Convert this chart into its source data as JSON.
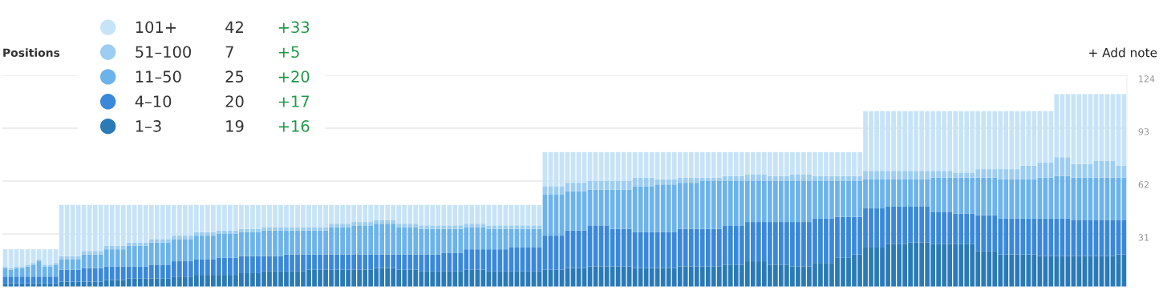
{
  "chart_data": {
    "type": "bar",
    "title": "Positions",
    "stacked": true,
    "categories": [
      null,
      null,
      null,
      null,
      null,
      null,
      null,
      null,
      null,
      null,
      null,
      null,
      null,
      null,
      null,
      null,
      null,
      null,
      null,
      null,
      null,
      null,
      null,
      null,
      null,
      null,
      null,
      null,
      null,
      null,
      null,
      null,
      null,
      null,
      null,
      null,
      null,
      null,
      null,
      null,
      null,
      null,
      null,
      null,
      null,
      null,
      null,
      null,
      null,
      null,
      null,
      null,
      null,
      null,
      null,
      null,
      null,
      null,
      null,
      null,
      null,
      null,
      null,
      null,
      null,
      null,
      null,
      null,
      null,
      null,
      null,
      null,
      null,
      null,
      null,
      null,
      null,
      null,
      null,
      null,
      null,
      null,
      null,
      null,
      null,
      null,
      null,
      null,
      null,
      null,
      null,
      null,
      null,
      null,
      null,
      null,
      null,
      null,
      null,
      null,
      null,
      null,
      null,
      null,
      null,
      null,
      null,
      null,
      null,
      null,
      null,
      null,
      null,
      null,
      null,
      null,
      null,
      null,
      null,
      null,
      null,
      null,
      null,
      null,
      null,
      null,
      null,
      null,
      null,
      null,
      null,
      null,
      null,
      null,
      null,
      null,
      null,
      null,
      null,
      null,
      null,
      null,
      null,
      null,
      null,
      null,
      null,
      null,
      null,
      null,
      null,
      null,
      null,
      null,
      null,
      null,
      null,
      null,
      null,
      null,
      null,
      null,
      null,
      null,
      null,
      null,
      null,
      null,
      null,
      null,
      null,
      null,
      null,
      null,
      null,
      null,
      null,
      null,
      null,
      null,
      null,
      null,
      null,
      null,
      null,
      null,
      null,
      null,
      null,
      null,
      null,
      null,
      null,
      null,
      null,
      null,
      null,
      null,
      null,
      null
    ],
    "series": [
      {
        "name": "1–3",
        "color": "#2a7ab8",
        "values": [
          2,
          2,
          2,
          2,
          2,
          2,
          2,
          2,
          2,
          2,
          3,
          3,
          3,
          3,
          3,
          3,
          3,
          3,
          4,
          4,
          4,
          4,
          5,
          5,
          5,
          5,
          5,
          5,
          5,
          5,
          6,
          6,
          6,
          6,
          7,
          7,
          7,
          7,
          7,
          7,
          7,
          7,
          8,
          8,
          8,
          8,
          9,
          9,
          9,
          9,
          9,
          9,
          9,
          9,
          10,
          10,
          10,
          10,
          10,
          10,
          10,
          10,
          10,
          10,
          10,
          10,
          11,
          11,
          11,
          11,
          10,
          10,
          10,
          10,
          9,
          9,
          9,
          9,
          9,
          9,
          9,
          9,
          10,
          10,
          10,
          10,
          9,
          9,
          9,
          9,
          9,
          9,
          9,
          9,
          9,
          9,
          10,
          10,
          10,
          10,
          11,
          11,
          11,
          11,
          12,
          12,
          12,
          12,
          12,
          12,
          12,
          12,
          11,
          11,
          11,
          11,
          11,
          11,
          11,
          11,
          12,
          12,
          12,
          12,
          12,
          12,
          12,
          12,
          13,
          13,
          13,
          13,
          15,
          15,
          15,
          15,
          13,
          13,
          13,
          13,
          12,
          12,
          12,
          12,
          14,
          14,
          14,
          14,
          17,
          17,
          17,
          19,
          19,
          23,
          23,
          23,
          23,
          25,
          25,
          25,
          25,
          26,
          26,
          26,
          26,
          25,
          25,
          25,
          25,
          25,
          25,
          25,
          25,
          21,
          21,
          21,
          21,
          19,
          19,
          19,
          19,
          19,
          19,
          19,
          18,
          18,
          18,
          18,
          18,
          18,
          18,
          18,
          18,
          18,
          18,
          18,
          18,
          18,
          19,
          19
        ]
      },
      {
        "name": "4–10",
        "color": "#3a88da",
        "values": [
          4,
          4,
          4,
          4,
          4,
          4,
          4,
          4,
          4,
          4,
          7,
          7,
          7,
          7,
          8,
          8,
          8,
          8,
          8,
          8,
          8,
          8,
          7,
          7,
          7,
          7,
          8,
          8,
          8,
          8,
          9,
          9,
          9,
          9,
          9,
          9,
          9,
          9,
          10,
          10,
          10,
          10,
          10,
          10,
          10,
          10,
          9,
          9,
          9,
          9,
          10,
          10,
          10,
          10,
          9,
          9,
          9,
          9,
          9,
          9,
          9,
          9,
          9,
          9,
          9,
          9,
          8,
          8,
          8,
          8,
          9,
          9,
          9,
          9,
          10,
          10,
          10,
          10,
          11,
          11,
          11,
          11,
          12,
          12,
          12,
          12,
          13,
          13,
          13,
          13,
          14,
          14,
          14,
          14,
          14,
          14,
          20,
          20,
          20,
          20,
          22,
          22,
          22,
          22,
          24,
          24,
          24,
          24,
          22,
          22,
          22,
          22,
          21,
          21,
          21,
          21,
          21,
          21,
          21,
          21,
          22,
          22,
          22,
          22,
          22,
          22,
          22,
          22,
          23,
          23,
          23,
          23,
          23,
          23,
          23,
          23,
          25,
          25,
          25,
          25,
          26,
          26,
          26,
          26,
          26,
          26,
          26,
          26,
          24,
          24,
          24,
          22,
          22,
          23,
          23,
          23,
          23,
          22,
          22,
          22,
          22,
          21,
          21,
          21,
          21,
          19,
          19,
          19,
          19,
          18,
          18,
          18,
          18,
          21,
          21,
          21,
          21,
          21,
          21,
          21,
          21,
          21,
          21,
          21,
          22,
          22,
          22,
          22,
          22,
          22,
          21,
          21,
          21,
          21,
          21,
          21,
          21,
          21,
          20,
          20
        ]
      },
      {
        "name": "11–50",
        "color": "#6cb3ec",
        "values": [
          5,
          4,
          5,
          5,
          6,
          7,
          9,
          6,
          6,
          7,
          6,
          6,
          6,
          6,
          8,
          8,
          8,
          8,
          10,
          10,
          10,
          10,
          12,
          12,
          12,
          12,
          13,
          13,
          13,
          13,
          13,
          13,
          13,
          13,
          14,
          14,
          14,
          14,
          14,
          14,
          14,
          14,
          14,
          14,
          14,
          14,
          15,
          15,
          15,
          15,
          14,
          14,
          14,
          14,
          14,
          14,
          14,
          14,
          16,
          16,
          16,
          16,
          17,
          17,
          17,
          17,
          18,
          18,
          18,
          18,
          16,
          16,
          16,
          16,
          15,
          15,
          15,
          15,
          14,
          14,
          14,
          14,
          13,
          13,
          13,
          13,
          12,
          12,
          12,
          12,
          11,
          11,
          11,
          11,
          11,
          11,
          24,
          24,
          24,
          24,
          23,
          23,
          23,
          23,
          21,
          21,
          21,
          21,
          23,
          23,
          23,
          23,
          27,
          27,
          27,
          27,
          28,
          28,
          28,
          28,
          27,
          27,
          27,
          27,
          28,
          28,
          28,
          28,
          26,
          26,
          26,
          26,
          24,
          24,
          24,
          24,
          24,
          24,
          24,
          24,
          24,
          24,
          24,
          24,
          22,
          22,
          22,
          22,
          21,
          21,
          21,
          21,
          21,
          17,
          17,
          17,
          17,
          16,
          16,
          16,
          16,
          16,
          16,
          16,
          16,
          20,
          20,
          20,
          20,
          21,
          21,
          21,
          21,
          22,
          22,
          22,
          22,
          23,
          23,
          23,
          23,
          23,
          23,
          23,
          24,
          24,
          24,
          25,
          25,
          25,
          25,
          25,
          25,
          25,
          25,
          25,
          25,
          25,
          25,
          25
        ]
      },
      {
        "name": "51–100",
        "color": "#9dcdf2",
        "values": [
          1,
          1,
          1,
          1,
          1,
          1,
          1,
          1,
          1,
          1,
          2,
          2,
          2,
          2,
          2,
          2,
          2,
          2,
          2,
          2,
          2,
          2,
          2,
          2,
          2,
          2,
          2,
          2,
          2,
          2,
          2,
          2,
          2,
          2,
          2,
          2,
          2,
          2,
          2,
          2,
          2,
          2,
          2,
          2,
          2,
          2,
          2,
          2,
          2,
          2,
          2,
          2,
          2,
          2,
          2,
          2,
          2,
          2,
          2,
          2,
          2,
          2,
          2,
          2,
          2,
          2,
          2,
          2,
          2,
          2,
          2,
          2,
          2,
          2,
          2,
          2,
          2,
          2,
          2,
          2,
          2,
          2,
          2,
          2,
          2,
          2,
          2,
          2,
          2,
          2,
          2,
          2,
          2,
          2,
          2,
          2,
          5,
          5,
          5,
          5,
          5,
          5,
          5,
          5,
          5,
          5,
          5,
          5,
          5,
          5,
          5,
          5,
          5,
          5,
          5,
          5,
          3,
          3,
          3,
          3,
          3,
          3,
          3,
          3,
          2,
          2,
          2,
          2,
          3,
          3,
          3,
          3,
          4,
          4,
          4,
          4,
          3,
          3,
          3,
          3,
          4,
          4,
          4,
          4,
          3,
          3,
          3,
          3,
          3,
          3,
          3,
          3,
          3,
          5,
          5,
          5,
          5,
          5,
          5,
          5,
          5,
          5,
          5,
          5,
          5,
          4,
          4,
          4,
          4,
          3,
          3,
          3,
          3,
          5,
          5,
          5,
          5,
          6,
          6,
          6,
          6,
          8,
          8,
          8,
          9,
          9,
          9,
          11,
          11,
          11,
          8,
          8,
          8,
          8,
          10,
          10,
          10,
          10,
          7,
          7
        ]
      },
      {
        "name": "101+",
        "color": "#c7e3f8",
        "values": [
          10,
          11,
          10,
          10,
          9,
          8,
          6,
          9,
          9,
          8,
          30,
          30,
          30,
          30,
          27,
          27,
          27,
          27,
          24,
          24,
          24,
          24,
          22,
          22,
          22,
          22,
          20,
          20,
          20,
          20,
          18,
          18,
          18,
          18,
          16,
          16,
          16,
          16,
          15,
          15,
          15,
          15,
          14,
          14,
          14,
          14,
          13,
          13,
          13,
          13,
          13,
          13,
          13,
          13,
          13,
          13,
          13,
          13,
          11,
          11,
          11,
          11,
          10,
          10,
          10,
          10,
          9,
          9,
          9,
          9,
          11,
          11,
          11,
          11,
          12,
          12,
          12,
          12,
          12,
          12,
          12,
          12,
          11,
          11,
          11,
          11,
          12,
          12,
          12,
          12,
          12,
          12,
          12,
          12,
          12,
          12,
          20,
          20,
          20,
          20,
          18,
          18,
          18,
          18,
          17,
          17,
          17,
          17,
          17,
          17,
          17,
          17,
          15,
          15,
          15,
          15,
          16,
          16,
          16,
          16,
          15,
          15,
          15,
          15,
          15,
          15,
          15,
          15,
          14,
          14,
          14,
          14,
          13,
          13,
          13,
          13,
          14,
          14,
          14,
          14,
          13,
          13,
          13,
          13,
          14,
          14,
          14,
          14,
          14,
          14,
          14,
          14,
          14,
          35,
          35,
          35,
          35,
          35,
          35,
          35,
          35,
          35,
          35,
          35,
          35,
          35,
          35,
          35,
          35,
          36,
          36,
          36,
          36,
          34,
          34,
          34,
          34,
          34,
          34,
          34,
          34,
          32,
          32,
          32,
          30,
          30,
          30,
          37,
          37,
          37,
          41,
          41,
          41,
          41,
          39,
          39,
          39,
          39,
          42,
          42
        ]
      }
    ],
    "ylim": [
      0,
      124
    ],
    "yticks": [
      31,
      62,
      93,
      124
    ],
    "grid": "y",
    "legend": "top left",
    "annotations": [
      "19",
      "20",
      "25",
      "7",
      "42",
      "+16",
      "+17",
      "+20",
      "+5",
      "+33",
      "+ Add note"
    ]
  }
}
